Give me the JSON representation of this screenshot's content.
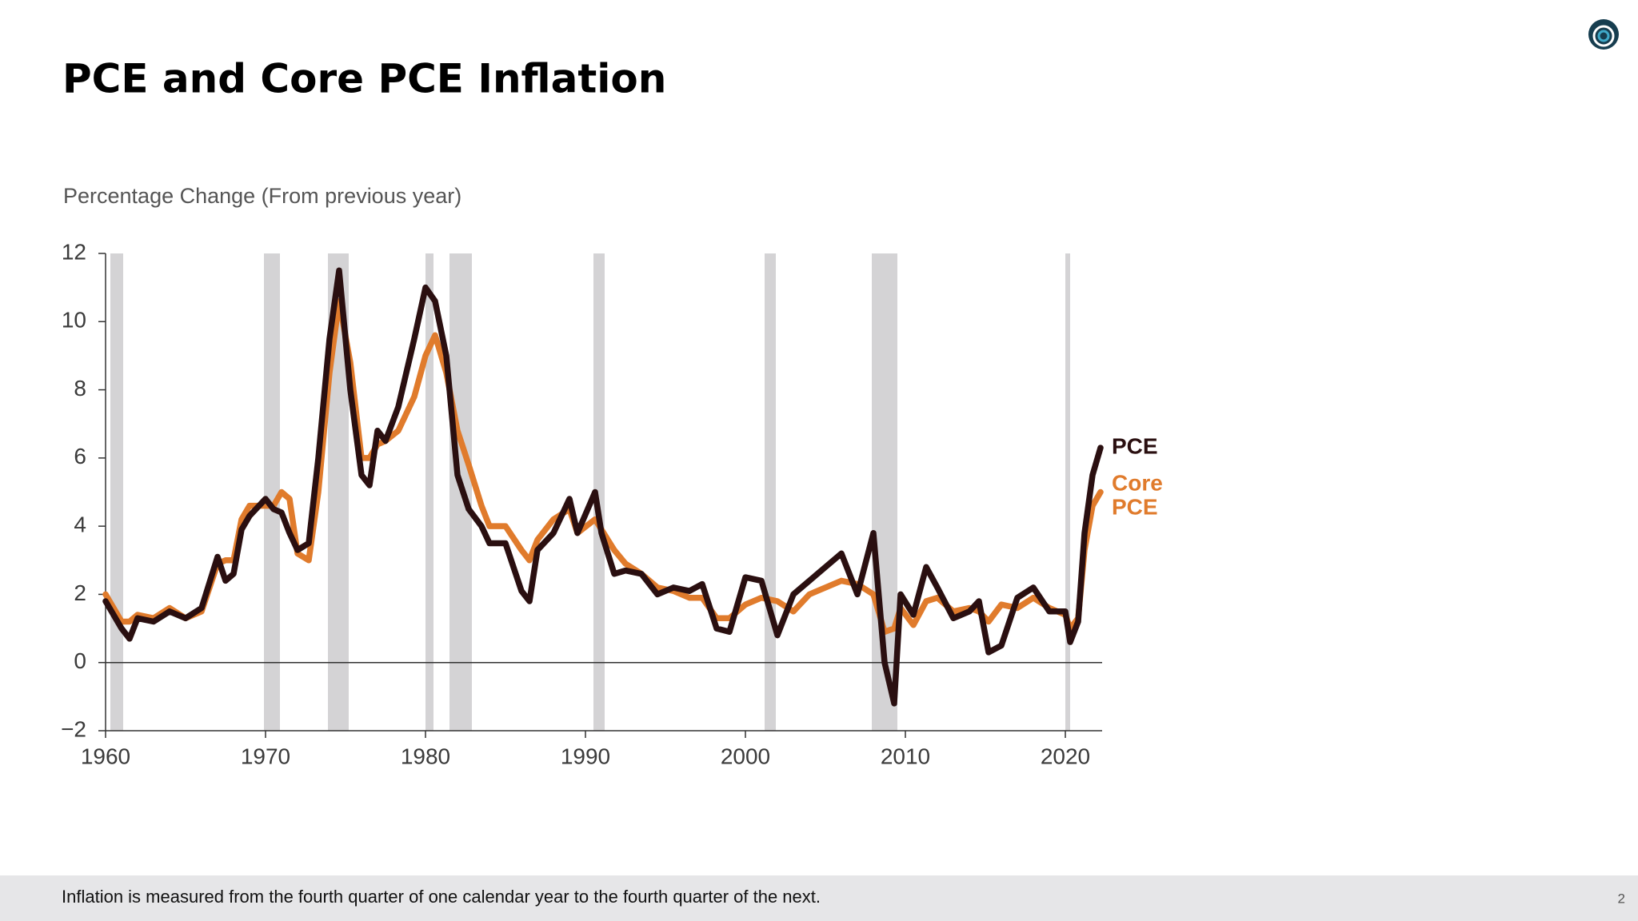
{
  "title": "PCE and Core PCE Inflation",
  "footer": {
    "note": "Inflation is measured from the fourth quarter of one calendar year to the fourth quarter of the next.",
    "page": "2"
  },
  "chart_data": {
    "type": "line",
    "ylabel": "Percentage Change (From previous year)",
    "x": [
      1960,
      1961,
      1961.5,
      1962,
      1963,
      1964,
      1965,
      1966,
      1967,
      1967.5,
      1968,
      1968.5,
      1969,
      1970,
      1970.5,
      1971,
      1971.5,
      1972,
      1972.7,
      1973.3,
      1974,
      1974.6,
      1975.3,
      1976,
      1976.5,
      1977,
      1977.5,
      1978.3,
      1979.3,
      1980,
      1980.6,
      1981.3,
      1982,
      1982.7,
      1983.5,
      1984,
      1985,
      1986,
      1986.5,
      1987,
      1988,
      1989,
      1989.5,
      1990.6,
      1991,
      1991.8,
      1992.5,
      1993.5,
      1994.5,
      1995.5,
      1996.5,
      1997.3,
      1998.2,
      1999,
      2000,
      2001,
      2002,
      2003,
      2004,
      2005,
      2006,
      2007,
      2008,
      2008.7,
      2009.3,
      2009.7,
      2010.5,
      2011.3,
      2012,
      2013,
      2014,
      2014.6,
      2015.2,
      2016,
      2017,
      2018,
      2019,
      2020,
      2020.3,
      2020.8,
      2021.2,
      2021.7,
      2022.2
    ],
    "series": [
      {
        "name": "Core PCE",
        "color": "#e07b2c",
        "values": [
          2.0,
          1.2,
          1.2,
          1.4,
          1.3,
          1.6,
          1.3,
          1.5,
          2.9,
          3.0,
          3.0,
          4.2,
          4.6,
          4.6,
          4.6,
          5.0,
          4.8,
          3.2,
          3.0,
          5.0,
          8.5,
          10.6,
          8.8,
          6.0,
          6.0,
          6.4,
          6.5,
          6.8,
          7.8,
          9.0,
          9.6,
          8.5,
          6.8,
          5.8,
          4.6,
          4.0,
          4.0,
          3.3,
          3.0,
          3.6,
          4.2,
          4.5,
          3.8,
          4.2,
          3.9,
          3.3,
          2.9,
          2.6,
          2.2,
          2.1,
          1.9,
          1.9,
          1.3,
          1.3,
          1.7,
          1.9,
          1.8,
          1.5,
          2.0,
          2.2,
          2.4,
          2.3,
          2.0,
          0.9,
          1.0,
          1.6,
          1.1,
          1.8,
          1.9,
          1.5,
          1.6,
          1.5,
          1.2,
          1.7,
          1.6,
          1.9,
          1.6,
          1.4,
          1.0,
          1.3,
          3.3,
          4.6,
          5.0
        ]
      },
      {
        "name": "PCE",
        "color": "#2a0f10",
        "values": [
          1.8,
          1.0,
          0.7,
          1.3,
          1.2,
          1.5,
          1.3,
          1.6,
          3.1,
          2.4,
          2.6,
          3.9,
          4.3,
          4.8,
          4.5,
          4.4,
          3.8,
          3.3,
          3.5,
          6.0,
          9.5,
          11.5,
          8.0,
          5.5,
          5.2,
          6.8,
          6.5,
          7.5,
          9.5,
          11.0,
          10.6,
          9.0,
          5.5,
          4.5,
          4.0,
          3.5,
          3.5,
          2.1,
          1.8,
          3.3,
          3.8,
          4.8,
          3.8,
          5.0,
          3.8,
          2.6,
          2.7,
          2.6,
          2.0,
          2.2,
          2.1,
          2.3,
          1.0,
          0.9,
          2.5,
          2.4,
          0.8,
          2.0,
          2.4,
          2.8,
          3.2,
          2.0,
          3.8,
          0.0,
          -1.2,
          2.0,
          1.4,
          2.8,
          2.2,
          1.3,
          1.5,
          1.8,
          0.3,
          0.5,
          1.9,
          2.2,
          1.5,
          1.5,
          0.6,
          1.2,
          3.8,
          5.5,
          6.3
        ]
      }
    ],
    "recessions": [
      [
        1960.3,
        1961.1
      ],
      [
        1969.9,
        1970.9
      ],
      [
        1973.9,
        1975.2
      ],
      [
        1980.0,
        1980.5
      ],
      [
        1981.5,
        1982.9
      ],
      [
        1990.5,
        1991.2
      ],
      [
        2001.2,
        2001.9
      ],
      [
        2007.9,
        2009.5
      ],
      [
        2020.0,
        2020.3
      ]
    ],
    "recession_color": "#d4d3d5",
    "xlim": [
      1960,
      2022.3
    ],
    "xticks": [
      1960,
      1970,
      1980,
      1990,
      2000,
      2010,
      2020
    ],
    "ylim": [
      -2,
      12
    ],
    "yticks": [
      {
        "value": -2,
        "label": "−2"
      },
      0,
      2,
      4,
      6,
      8,
      10,
      12
    ]
  }
}
